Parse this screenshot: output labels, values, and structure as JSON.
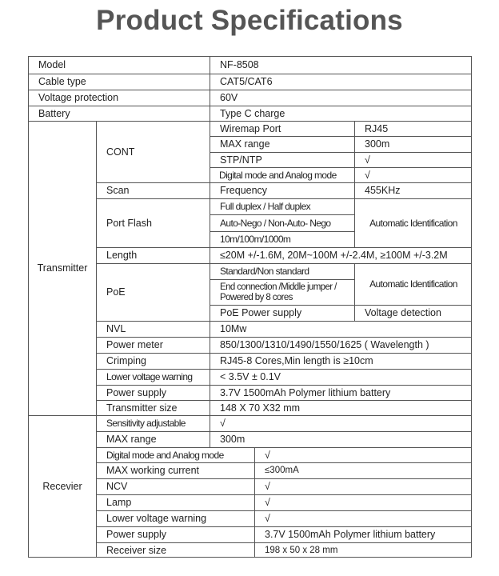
{
  "title": "Product Specifications",
  "general": {
    "model": {
      "label": "Model",
      "value": "NF-8508"
    },
    "cable_type": {
      "label": "Cable type",
      "value": "CAT5/CAT6"
    },
    "voltage_protection": {
      "label": "Voltage protection",
      "value": "60V"
    },
    "battery": {
      "label": "Battery",
      "value": "Type C charge"
    }
  },
  "transmitter": {
    "label": "Transmitter",
    "cont": {
      "label": "CONT",
      "rows": [
        {
          "label": "Wiremap Port",
          "value": "RJ45"
        },
        {
          "label": "MAX range",
          "value": "300m"
        },
        {
          "label": "STP/NTP",
          "value": "√"
        },
        {
          "label": "Digital mode and Analog mode",
          "value": "√"
        }
      ]
    },
    "scan": {
      "label": "Scan",
      "sub": "Frequency",
      "value": "455KHz"
    },
    "port_flash": {
      "label": "Port Flash",
      "rows": [
        "Full duplex / Half duplex",
        "Auto-Nego / Non-Auto- Nego",
        "10m/100m/1000m"
      ],
      "value": "Automatic Identification"
    },
    "length": {
      "label": "Length",
      "value": "≤20M +/-1.6M, 20M~100M +/-2.4M, ≥100M +/-3.2M"
    },
    "poe": {
      "label": "PoE",
      "rows": [
        "Standard/Non standard",
        "End connection /Middle jumper / Powered by 8 cores"
      ],
      "rows_value": "Automatic Identification",
      "power_supply": {
        "label": "PoE Power supply",
        "value": "Voltage detection"
      }
    },
    "rows": [
      {
        "label": "NVL",
        "value": "10Mw"
      },
      {
        "label": "Power meter",
        "value": "850/1300/1310/1490/1550/1625 ( Wavelength )"
      },
      {
        "label": "Crimping",
        "value": "RJ45-8 Cores,Min length is ≥10cm"
      },
      {
        "label": "Lower voltage warning",
        "value": "< 3.5V ± 0.1V"
      },
      {
        "label": "Power supply",
        "value": "3.7V 1500mAh Polymer lithium battery"
      },
      {
        "label": "Transmitter size",
        "value": "148 X 70 X32 mm"
      }
    ]
  },
  "receiver": {
    "label": "Recevier",
    "rows_a": [
      {
        "label": "Sensitivity adjustable",
        "value": "√"
      },
      {
        "label": "MAX range",
        "value": "300m"
      }
    ],
    "rows_b": [
      {
        "label": "Digital mode and Analog mode",
        "value": "√"
      },
      {
        "label": "MAX working current",
        "value": "≤300mA"
      },
      {
        "label": "NCV",
        "value": "√"
      },
      {
        "label": "Lamp",
        "value": "√"
      },
      {
        "label": "Lower voltage warning",
        "value": "√"
      },
      {
        "label": "Power supply",
        "value": "3.7V 1500mAh Polymer lithium battery"
      },
      {
        "label": "Receiver size",
        "value": "198 x 50 x 28 mm"
      }
    ]
  }
}
